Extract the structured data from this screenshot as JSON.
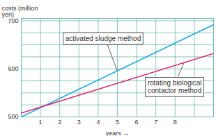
{
  "chart_data": {
    "type": "line",
    "ylabel": "costs (million yen)",
    "xlabel": "years",
    "x": [
      0,
      10
    ],
    "series": [
      {
        "name": "activated sludge method",
        "color": "#29abe2",
        "values": [
          500,
          692
        ]
      },
      {
        "name": "rotating biological contactor method",
        "color": "#d6246e",
        "values": [
          508,
          632
        ]
      }
    ],
    "xlim": [
      0,
      10
    ],
    "xticks": [
      1,
      2,
      3,
      4,
      5,
      6,
      7,
      8
    ],
    "ylim": [
      500,
      705
    ],
    "yticks": [
      500,
      600,
      700
    ],
    "grid": true
  }
}
